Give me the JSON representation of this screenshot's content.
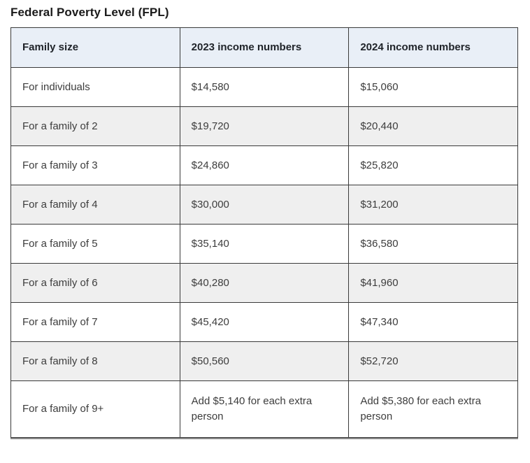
{
  "page": {
    "title": "Federal Poverty Level (FPL)"
  },
  "table": {
    "columns": [
      "Family size",
      "2023 income numbers",
      "2024 income numbers"
    ],
    "rows": [
      [
        "For individuals",
        "$14,580",
        "$15,060"
      ],
      [
        "For a family of 2",
        "$19,720",
        "$20,440"
      ],
      [
        "For a family of 3",
        "$24,860",
        "$25,820"
      ],
      [
        "For a family of 4",
        "$30,000",
        "$31,200"
      ],
      [
        "For a family of 5",
        "$35,140",
        "$36,580"
      ],
      [
        "For a family of 6",
        "$40,280",
        "$41,960"
      ],
      [
        "For a family of 7",
        "$45,420",
        "$47,340"
      ],
      [
        "For a family of 8",
        "$50,560",
        "$52,720"
      ],
      [
        "For a family of 9+",
        "Add $5,140 for each extra person",
        "Add $5,380 for each extra person"
      ]
    ],
    "colors": {
      "header_bg": "#e9eff7",
      "row_alt_bg": "#efefef",
      "border": "#3a3a3a",
      "bottom_shadow": "#8a8a8a",
      "header_text": "#1f2329",
      "cell_text": "#3d3d3d",
      "title_text": "#1a1a1a"
    }
  }
}
